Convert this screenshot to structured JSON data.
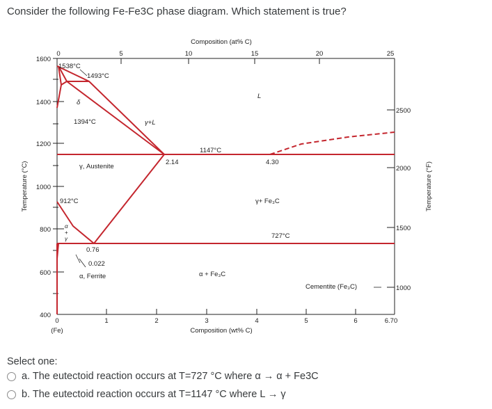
{
  "question": {
    "text": "Consider the following Fe-Fe3C phase diagram. Which statement is true?"
  },
  "diagram": {
    "top_axis_title": "Composition (at% C)",
    "top_ticks": [
      "0",
      "5",
      "10",
      "15",
      "20",
      "25"
    ],
    "bottom_ticks": [
      "0",
      "1",
      "2",
      "3",
      "4",
      "5",
      "6",
      "6.70"
    ],
    "bottom_axis_title": "Composition (wt% C)",
    "fe_label": "(Fe)",
    "left_axis_title": "Temperature (°C)",
    "left_ticks": [
      "1600",
      "1400",
      "1200",
      "1000",
      "800",
      "600",
      "400"
    ],
    "right_axis_title": "Temperature (°F)",
    "right_ticks": [
      "2500",
      "2000",
      "1500",
      "1000"
    ],
    "labels": {
      "t1538": "1538°C",
      "t1493": "1493°C",
      "delta": "δ",
      "t1394": "1394°C",
      "gamma_liquid": "γ+L",
      "liquid": "L",
      "t1147": "1147°C",
      "c214": "2.14",
      "c430": "4.30",
      "austenite": "γ, Austenite",
      "t912": "912°C",
      "gamma_fe3c": "γ+ Fe₃C",
      "t727": "727°C",
      "alpha_gamma_a": "α",
      "alpha_gamma_plus": "+",
      "alpha_gamma_g": "γ",
      "c076": "0.76",
      "c0022": "0.022",
      "ferrite": "α, Ferrite",
      "alpha_fe3c": "α + Fe₃C",
      "cementite": "Cementite (Fe₃C)"
    },
    "colors": {
      "phase_line": "#c4262e",
      "axis": "#222222"
    }
  },
  "answers": {
    "select_one": "Select one:",
    "options": [
      {
        "label": "a. The eutectoid reaction occurs at T=727 °C where α → α + Fe3C"
      },
      {
        "label": "b. The eutectoid reaction occurs at T=1147 °C where L → γ"
      }
    ]
  }
}
